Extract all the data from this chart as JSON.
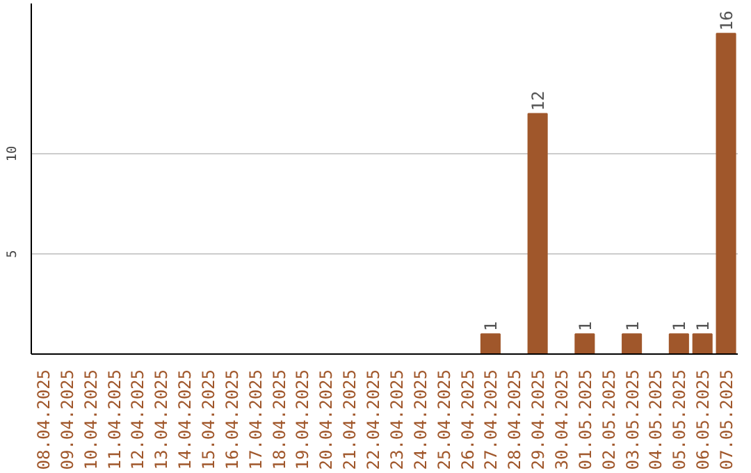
{
  "chart_data": {
    "type": "bar",
    "categories": [
      "08.04.2025",
      "09.04.2025",
      "10.04.2025",
      "11.04.2025",
      "12.04.2025",
      "13.04.2025",
      "14.04.2025",
      "15.04.2025",
      "16.04.2025",
      "17.04.2025",
      "18.04.2025",
      "19.04.2025",
      "20.04.2025",
      "21.04.2025",
      "22.04.2025",
      "23.04.2025",
      "24.04.2025",
      "25.04.2025",
      "26.04.2025",
      "27.04.2025",
      "28.04.2025",
      "29.04.2025",
      "30.04.2025",
      "01.05.2025",
      "02.05.2025",
      "03.05.2025",
      "04.05.2025",
      "05.05.2025",
      "06.05.2025",
      "07.05.2025"
    ],
    "values": [
      0,
      0,
      0,
      0,
      0,
      0,
      0,
      0,
      0,
      0,
      0,
      0,
      0,
      0,
      0,
      0,
      0,
      0,
      0,
      1,
      0,
      12,
      0,
      1,
      0,
      1,
      0,
      1,
      1,
      16
    ],
    "value_labels": [
      null,
      null,
      null,
      null,
      null,
      null,
      null,
      null,
      null,
      null,
      null,
      null,
      null,
      null,
      null,
      null,
      null,
      null,
      null,
      "1",
      null,
      "12",
      null,
      "1",
      null,
      "1",
      null,
      "1",
      "1",
      "16"
    ],
    "color": "#a0572b",
    "ylim": [
      0,
      17.5
    ],
    "yticks": [
      5,
      10
    ],
    "grid": "y"
  }
}
